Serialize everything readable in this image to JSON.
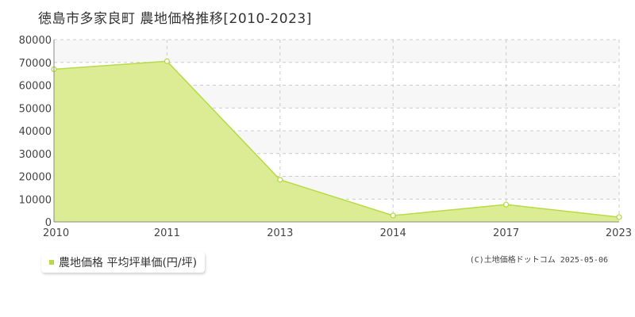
{
  "header": {
    "title": "徳島市多家良町 農地価格推移[2010-2023]"
  },
  "legend": {
    "label": "農地価格 平均坪単価(円/坪)"
  },
  "footer": {
    "copyright": "(C)土地価格ドットコム 2025-05-06"
  },
  "colors": {
    "fill": "#dcec95",
    "line": "#b6dc44",
    "marker": "#b6dc44",
    "band": "#f7f7f8",
    "grid": "#cccccc",
    "axis": "#888888"
  },
  "chart_data": {
    "type": "area",
    "title": "徳島市多家良町 農地価格推移[2010-2023]",
    "xlabel": "",
    "ylabel": "",
    "x": [
      2010,
      2011,
      2013,
      2014,
      2017,
      2023
    ],
    "x_tick_labels": [
      "2010",
      "2011",
      "2013",
      "2014",
      "2017",
      "2023"
    ],
    "x_spacing": "categorical",
    "series": [
      {
        "name": "農地価格 平均坪単価(円/坪)",
        "values": [
          67000,
          70500,
          18500,
          2800,
          7600,
          2100
        ]
      }
    ],
    "ylim": [
      0,
      80000
    ],
    "yticks": [
      0,
      10000,
      20000,
      30000,
      40000,
      50000,
      60000,
      70000,
      80000
    ],
    "y_tick_labels": [
      "0",
      "10000",
      "20000",
      "30000",
      "40000",
      "50000",
      "60000",
      "70000",
      "80000"
    ],
    "grid": true,
    "legend_position": "bottom-left"
  }
}
